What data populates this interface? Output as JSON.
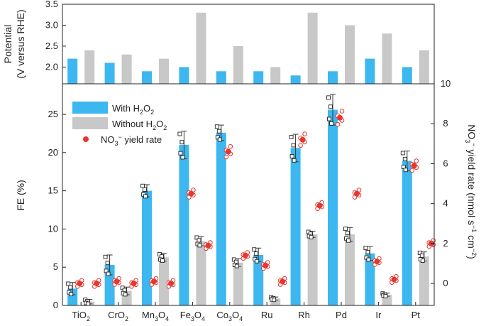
{
  "chart_data": [
    {
      "type": "bar",
      "panel": "top",
      "ylabel": "Potential",
      "ylabel2": "(V versus RHE)",
      "ylim": [
        1.6,
        3.5
      ],
      "yticks": [
        "2.0",
        "2.5",
        "3.0",
        "3.5"
      ],
      "categories": [
        "TiO2",
        "CrO2",
        "Mn3O4",
        "Fe3O4",
        "Co3O4",
        "Ru",
        "Rh",
        "Pd",
        "Ir",
        "Pt"
      ],
      "series": [
        {
          "name": "With H2O2",
          "color": "#3db7ef",
          "values": [
            2.2,
            2.1,
            1.9,
            2.0,
            1.9,
            1.9,
            1.8,
            1.9,
            2.2,
            2.0
          ]
        },
        {
          "name": "Without H2O2",
          "color": "#c8c8c8",
          "values": [
            2.4,
            2.3,
            2.2,
            3.3,
            2.5,
            2.0,
            3.3,
            3.0,
            2.8,
            2.4
          ]
        }
      ]
    },
    {
      "type": "bar",
      "panel": "bottom",
      "ylabel": "FE (%)",
      "ylim": [
        0,
        29
      ],
      "yticks": [
        "0",
        "5",
        "10",
        "15",
        "20",
        "25"
      ],
      "y2label": "NO3− yield rate (nmol s−1 cm−2)",
      "y2lim": [
        -1.1,
        10
      ],
      "y2ticks": [
        "0",
        "2",
        "4",
        "6",
        "8",
        "10"
      ],
      "categories": [
        "TiO2",
        "CrO2",
        "Mn3O4",
        "Fe3O4",
        "Co3O4",
        "Ru",
        "Rh",
        "Pd",
        "Ir",
        "Pt"
      ],
      "category_labels": [
        {
          "base": "TiO",
          "sub": "2"
        },
        {
          "base": "CrO",
          "sub": "2"
        },
        {
          "parts": [
            "Mn",
            "3",
            "O",
            "4"
          ]
        },
        {
          "parts": [
            "Fe",
            "3",
            "O",
            "4"
          ]
        },
        {
          "parts": [
            "Co",
            "3",
            "O",
            "4"
          ]
        },
        {
          "base": "Ru",
          "sub": ""
        },
        {
          "base": "Rh",
          "sub": ""
        },
        {
          "base": "Pd",
          "sub": ""
        },
        {
          "base": "Ir",
          "sub": ""
        },
        {
          "base": "Pt",
          "sub": ""
        }
      ],
      "series": [
        {
          "name": "With H2O2",
          "color": "#3db7ef",
          "values": [
            2.2,
            5.3,
            15.0,
            21.0,
            22.6,
            6.6,
            20.6,
            25.6,
            6.8,
            18.9
          ],
          "errors": [
            0.8,
            1.3,
            0.8,
            1.8,
            1.0,
            0.9,
            1.8,
            2.0,
            0.9,
            1.3
          ]
        },
        {
          "name": "Without H2O2",
          "color": "#c8c8c8",
          "values": [
            0.5,
            1.9,
            6.3,
            8.4,
            5.6,
            0.9,
            9.3,
            9.3,
            1.4,
            6.4
          ],
          "errors": [
            0.3,
            0.5,
            0.5,
            0.6,
            0.5,
            0.2,
            0.4,
            0.9,
            0.2,
            0.6
          ]
        }
      ],
      "yield_series": {
        "name": "NO3− yield rate",
        "color": "#e8352e",
        "with": [
          0.0,
          0.1,
          0.1,
          4.5,
          6.6,
          0.9,
          7.2,
          8.3,
          1.1,
          5.9
        ],
        "without": [
          0.0,
          0.0,
          0.0,
          1.9,
          1.4,
          0.1,
          3.9,
          4.5,
          0.2,
          2.0
        ]
      }
    }
  ],
  "legend": {
    "with_base": "With H",
    "with_sub": "2",
    "with_mid": "O",
    "with_sub2": "2",
    "without_base": "Without H",
    "without_sub": "2",
    "without_mid": "O",
    "without_sub2": "2",
    "yield_base": "NO",
    "yield_sub": "3",
    "yield_sup": "−",
    "yield_rest": " yield rate"
  },
  "axis_titles": {
    "top_line1": "Potential",
    "top_line2": "(V versus RHE)",
    "bottom_left": "FE (%)",
    "right_a": "NO",
    "right_sub": "3",
    "right_sup": "−",
    "right_b": " yield rate (nmol s",
    "right_sup2": "−1",
    "right_c": " cm",
    "right_sup3": "−2",
    "right_d": ")"
  }
}
